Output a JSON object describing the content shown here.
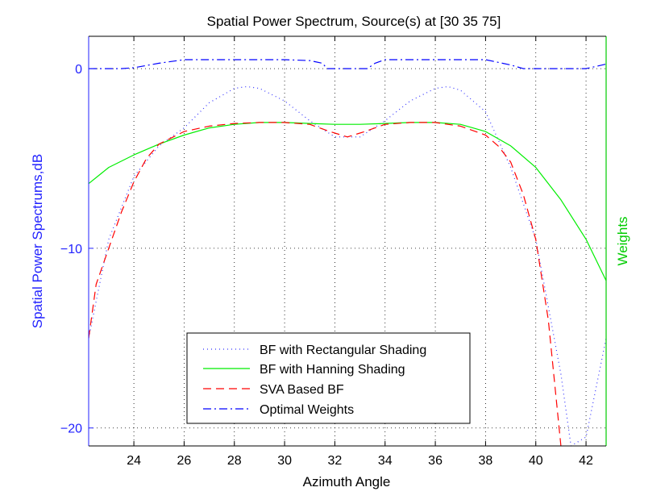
{
  "chart_data": {
    "type": "line",
    "title": "Spatial Power Spectrum, Source(s) at [30  35  75]",
    "xlabel": "Azimuth Angle",
    "ylabel": "Spatial Power Spectrums,dB",
    "ylabel_right": "Weights",
    "xlim": [
      22.2,
      42.8
    ],
    "ylim": [
      -21,
      1.8
    ],
    "xticks": [
      24,
      26,
      28,
      30,
      32,
      34,
      36,
      38,
      40,
      42
    ],
    "yticks": [
      0,
      -10,
      -20
    ],
    "xtick_labels": [
      "24",
      "26",
      "28",
      "30",
      "32",
      "34",
      "36",
      "38",
      "40",
      "42"
    ],
    "ytick_labels": [
      "0",
      "−10",
      "−20"
    ],
    "grid": true,
    "legend_position": "bottom-center",
    "colors": {
      "axis_left": "#2222ff",
      "axis_right": "#00cc00",
      "rect": "#3333ff",
      "hanning": "#00ee00",
      "sva": "#ff0000",
      "optimal": "#0000ff"
    },
    "series": [
      {
        "name": "BF with Rectangular Shading",
        "style": "dotted",
        "color": "#3333ff",
        "x": [
          22.2,
          23,
          24,
          25,
          26,
          27,
          28,
          28.5,
          29,
          30,
          31,
          32,
          33,
          34,
          35,
          36,
          36.5,
          37,
          38,
          39,
          40,
          41,
          41.4,
          42,
          42.8
        ],
        "y": [
          -15,
          -9.5,
          -6,
          -4.3,
          -3.3,
          -1.9,
          -1.1,
          -1.0,
          -1.1,
          -1.8,
          -2.9,
          -3.8,
          -3.8,
          -2.9,
          -1.8,
          -1.1,
          -1.0,
          -1.2,
          -2.4,
          -5.5,
          -9.5,
          -17,
          -21,
          -20.5,
          -15
        ]
      },
      {
        "name": "BF with Hanning Shading",
        "style": "solid",
        "color": "#00ee00",
        "x": [
          22.2,
          23,
          24,
          25,
          26,
          27,
          28,
          29,
          30,
          31,
          32,
          33,
          34,
          35,
          36,
          37,
          38,
          39,
          40,
          41,
          42,
          42.8
        ],
        "y": [
          -6.4,
          -5.5,
          -4.8,
          -4.2,
          -3.7,
          -3.3,
          -3.1,
          -3.0,
          -3.0,
          -3.05,
          -3.1,
          -3.1,
          -3.05,
          -3.0,
          -3.0,
          -3.1,
          -3.5,
          -4.3,
          -5.5,
          -7.3,
          -9.5,
          -11.8
        ]
      },
      {
        "name": "SVA Based BF",
        "style": "dashed",
        "color": "#ff0000",
        "x": [
          22.2,
          22.5,
          23,
          23.5,
          24,
          24.5,
          25,
          26,
          27,
          28,
          29,
          30,
          31,
          31.8,
          32.5,
          33.2,
          34,
          35,
          36,
          37,
          38,
          38.5,
          39,
          39.5,
          40,
          40.5,
          41
        ],
        "y": [
          -15,
          -12,
          -10,
          -8,
          -6.3,
          -5.0,
          -4.2,
          -3.5,
          -3.2,
          -3.05,
          -3.0,
          -3.0,
          -3.1,
          -3.5,
          -3.8,
          -3.5,
          -3.1,
          -3.0,
          -3.0,
          -3.2,
          -3.7,
          -4.3,
          -5.2,
          -7,
          -9.5,
          -14,
          -21
        ]
      },
      {
        "name": "Optimal Weights",
        "style": "dashdot",
        "color": "#0000ff",
        "x": [
          22.2,
          23.5,
          24,
          25,
          26,
          26.5,
          28,
          30,
          31,
          31.5,
          31.7,
          32,
          33,
          33.3,
          33.6,
          34,
          35,
          37,
          38,
          39,
          39.5,
          40,
          41,
          42,
          42.8
        ],
        "y": [
          0,
          0,
          0.05,
          0.3,
          0.5,
          0.5,
          0.5,
          0.5,
          0.45,
          0.3,
          0,
          0,
          0,
          0,
          0.3,
          0.5,
          0.5,
          0.5,
          0.5,
          0.2,
          0,
          0,
          0,
          0,
          0.25
        ]
      }
    ]
  }
}
